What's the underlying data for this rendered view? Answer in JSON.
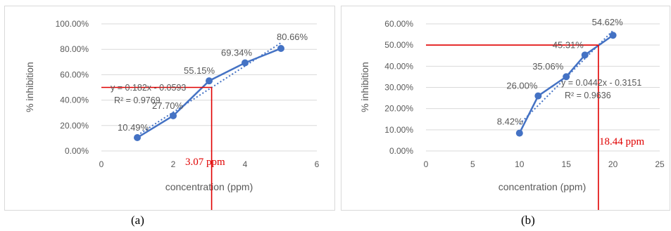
{
  "chart_data": [
    {
      "type": "line",
      "title": "",
      "xlabel": "concentration (ppm)",
      "ylabel": "% inhibition",
      "xlim": [
        0,
        6
      ],
      "ylim": [
        0,
        100
      ],
      "x_ticks": [
        "0",
        "2",
        "4",
        "6"
      ],
      "y_ticks": [
        "0.00%",
        "20.00%",
        "40.00%",
        "60.00%",
        "80.00%",
        "100.00%"
      ],
      "series": [
        {
          "x": [
            1,
            2,
            3,
            4,
            5
          ],
          "values": [
            10.49,
            27.7,
            55.15,
            69.34,
            80.66
          ],
          "labels": [
            "10.49%",
            "27.70%",
            "55.15%",
            "69.34%",
            "80.66%"
          ]
        }
      ],
      "trendline": {
        "equation": "y = 0.182x - 0.0593",
        "r2": "R² = 0.9769"
      },
      "ic50_line": {
        "x": 3.07,
        "y": 50,
        "label": "3.07 ppm"
      },
      "caption": "(a)",
      "grid": "horizontal",
      "colors": {
        "series": "#4472c4",
        "marker_line": "#e00000",
        "axis_text": "#595959",
        "grid": "#d9d9d9"
      }
    },
    {
      "type": "line",
      "title": "",
      "xlabel": "concentration (ppm)",
      "ylabel": "% inhibition",
      "xlim": [
        0,
        25
      ],
      "ylim": [
        0,
        60
      ],
      "x_ticks": [
        "0",
        "5",
        "10",
        "15",
        "20",
        "25"
      ],
      "y_ticks": [
        "0.00%",
        "10.00%",
        "20.00%",
        "30.00%",
        "40.00%",
        "50.00%",
        "60.00%"
      ],
      "series": [
        {
          "x": [
            10,
            12,
            15,
            17,
            20
          ],
          "values": [
            8.42,
            26.0,
            35.06,
            45.31,
            54.62
          ],
          "labels": [
            "8.42%",
            "26.00%",
            "35.06%",
            "45.31%",
            "54.62%"
          ]
        }
      ],
      "trendline": {
        "equation": "y = 0.0442x - 0.3151",
        "r2": "R² = 0.9636"
      },
      "ic50_line": {
        "x": 18.44,
        "y": 50,
        "label": "18.44 ppm"
      },
      "caption": "(b)",
      "grid": "horizontal",
      "colors": {
        "series": "#4472c4",
        "marker_line": "#e00000",
        "axis_text": "#595959",
        "grid": "#d9d9d9"
      }
    }
  ]
}
